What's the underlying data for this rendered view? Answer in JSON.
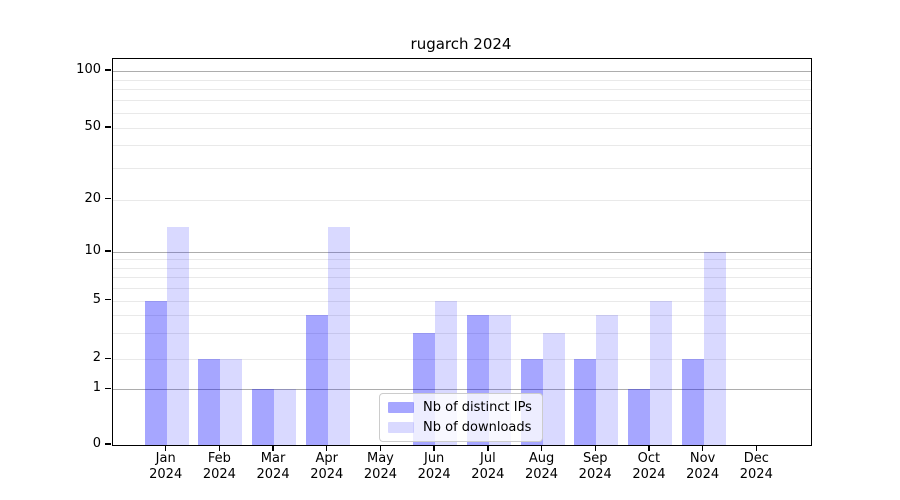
{
  "title": "rugarch 2024",
  "chart_data": {
    "type": "bar",
    "categories": [
      "Jan",
      "Feb",
      "Mar",
      "Apr",
      "May",
      "Jun",
      "Jul",
      "Aug",
      "Sep",
      "Oct",
      "Nov",
      "Dec"
    ],
    "category_year": "2024",
    "series": [
      {
        "name": "Nb of distinct IPs",
        "color": "#0000FF59",
        "values": [
          5,
          2,
          1,
          4,
          0,
          3,
          4,
          2,
          2,
          1,
          2,
          0
        ]
      },
      {
        "name": "Nb of downloads",
        "color": "#0000FF26",
        "values": [
          14,
          2,
          1,
          14,
          0,
          5,
          4,
          3,
          4,
          5,
          10,
          0
        ]
      }
    ],
    "yticks": [
      0,
      1,
      2,
      5,
      10,
      20,
      50,
      100
    ],
    "ylim": [
      0,
      110
    ],
    "yscale": "log-like",
    "grid": {
      "major_values": [
        1,
        10,
        100
      ],
      "minor_values": [
        2,
        3,
        4,
        5,
        6,
        7,
        8,
        9,
        20,
        30,
        40,
        50,
        60,
        70,
        80,
        90
      ],
      "major_color": "#ADADAD",
      "minor_color": "#E9E9E9"
    },
    "legend_position": "lower-center",
    "title": "rugarch 2024"
  }
}
